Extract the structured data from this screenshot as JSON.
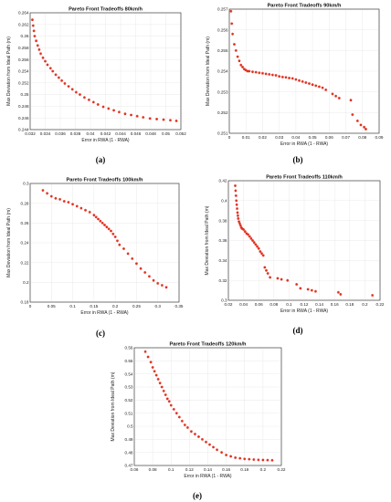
{
  "chart_data": [
    {
      "type": "scatter",
      "caption": "(a)",
      "title": "Pareto Front Tradeoffs 80km/h",
      "xlabel": "Error in RWA (1 - RWA)",
      "ylabel": "Max Deviation from Ideal Path (m)",
      "xlim": [
        0.032,
        0.052
      ],
      "ylim": [
        0.244,
        0.264
      ],
      "xticks": [
        "0.032",
        "0.034",
        "0.036",
        "0.038",
        "0.04",
        "0.042",
        "0.044",
        "0.046",
        "0.048",
        "0.05",
        "0.052"
      ],
      "yticks": [
        "0.244",
        "0.246",
        "0.248",
        "0.25",
        "0.252",
        "0.254",
        "0.256",
        "0.258",
        "0.26",
        "0.262",
        "0.264"
      ],
      "grid": true,
      "x": [
        0.0323,
        0.0324,
        0.0325,
        0.0326,
        0.0328,
        0.033,
        0.0332,
        0.0334,
        0.0337,
        0.034,
        0.0343,
        0.0347,
        0.035,
        0.0354,
        0.0358,
        0.0362,
        0.0366,
        0.0371,
        0.0376,
        0.0381,
        0.0386,
        0.0392,
        0.0398,
        0.0404,
        0.041,
        0.0417,
        0.0424,
        0.0431,
        0.0438,
        0.0446,
        0.0454,
        0.0462,
        0.047,
        0.0479,
        0.0488,
        0.0497,
        0.0506,
        0.0514
      ],
      "y": [
        0.2628,
        0.2618,
        0.2609,
        0.26,
        0.2592,
        0.2584,
        0.2577,
        0.257,
        0.2563,
        0.2557,
        0.2551,
        0.2545,
        0.254,
        0.2534,
        0.2529,
        0.2524,
        0.2519,
        0.2514,
        0.2509,
        0.2504,
        0.25,
        0.2495,
        0.2491,
        0.2487,
        0.2483,
        0.2479,
        0.2476,
        0.2473,
        0.247,
        0.2467,
        0.2465,
        0.2463,
        0.2461,
        0.2459,
        0.2458,
        0.2457,
        0.2456,
        0.2455
      ]
    },
    {
      "type": "scatter",
      "caption": "(b)",
      "title": "Pareto Front Tradeoffs 90km/h",
      "xlabel": "Error in RWA (1 - RWA)",
      "ylabel": "Max Deviation from Ideal Path (m)",
      "xlim": [
        0,
        0.09
      ],
      "ylim": [
        0.251,
        0.257
      ],
      "xticks": [
        "0",
        "0.01",
        "0.02",
        "0.03",
        "0.04",
        "0.05",
        "0.06",
        "0.07",
        "0.08",
        "0.09"
      ],
      "yticks": [
        "0.251",
        "0.252",
        "0.253",
        "0.254",
        "0.255",
        "0.256",
        "0.257"
      ],
      "grid": true,
      "x": [
        0.001,
        0.0015,
        0.002,
        0.003,
        0.004,
        0.005,
        0.006,
        0.007,
        0.008,
        0.009,
        0.01,
        0.011,
        0.012,
        0.014,
        0.016,
        0.018,
        0.02,
        0.022,
        0.024,
        0.026,
        0.028,
        0.03,
        0.032,
        0.034,
        0.036,
        0.038,
        0.04,
        0.042,
        0.044,
        0.046,
        0.048,
        0.05,
        0.052,
        0.054,
        0.056,
        0.058,
        0.062,
        0.064,
        0.066,
        0.073,
        0.074,
        0.077,
        0.079,
        0.081,
        0.082
      ],
      "y": [
        0.2569,
        0.2563,
        0.2558,
        0.2553,
        0.255,
        0.2547,
        0.2545,
        0.2543,
        0.2542,
        0.2541,
        0.25405,
        0.254,
        0.254,
        0.25397,
        0.25395,
        0.25392,
        0.2539,
        0.25387,
        0.25385,
        0.25382,
        0.2538,
        0.25375,
        0.25372,
        0.2537,
        0.25367,
        0.25365,
        0.2536,
        0.25355,
        0.2535,
        0.25345,
        0.2534,
        0.25335,
        0.2533,
        0.25325,
        0.2532,
        0.2531,
        0.2529,
        0.2528,
        0.2527,
        0.2526,
        0.2519,
        0.2516,
        0.2514,
        0.2513,
        0.2512
      ]
    },
    {
      "type": "scatter",
      "caption": "(c)",
      "title": "Pareto Front Tradeoffs 100km/h",
      "xlabel": "Error in RWA (1 - RWA)",
      "ylabel": "Max Deviation from Ideal Path (m)",
      "xlim": [
        0,
        0.35
      ],
      "ylim": [
        0.18,
        0.3
      ],
      "xticks": [
        "0",
        "0.05",
        "0.1",
        "0.15",
        "0.2",
        "0.25",
        "0.3",
        "0.35"
      ],
      "yticks": [
        "0.18",
        "0.2",
        "0.22",
        "0.24",
        "0.26",
        "0.28",
        "0.3"
      ],
      "grid": true,
      "x": [
        0.03,
        0.04,
        0.05,
        0.06,
        0.07,
        0.08,
        0.09,
        0.1,
        0.11,
        0.12,
        0.13,
        0.14,
        0.15,
        0.155,
        0.16,
        0.165,
        0.17,
        0.175,
        0.18,
        0.185,
        0.19,
        0.195,
        0.2,
        0.205,
        0.21,
        0.22,
        0.23,
        0.24,
        0.25,
        0.26,
        0.27,
        0.28,
        0.29,
        0.3,
        0.31,
        0.32
      ],
      "y": [
        0.293,
        0.29,
        0.287,
        0.285,
        0.284,
        0.282,
        0.281,
        0.279,
        0.277,
        0.275,
        0.273,
        0.271,
        0.268,
        0.266,
        0.264,
        0.262,
        0.26,
        0.258,
        0.256,
        0.254,
        0.252,
        0.249,
        0.246,
        0.242,
        0.238,
        0.234,
        0.229,
        0.224,
        0.219,
        0.214,
        0.21,
        0.206,
        0.202,
        0.199,
        0.197,
        0.195
      ]
    },
    {
      "type": "scatter",
      "caption": "(d)",
      "title": "Pareto Front Tradeoffs 110km/h",
      "xlabel": "Error in RWA (1 - RWA)",
      "ylabel": "Max Deviation from Ideal Path (m)",
      "xlim": [
        0.02,
        0.22
      ],
      "ylim": [
        0.3,
        0.42
      ],
      "xticks": [
        "0.02",
        "0.04",
        "0.06",
        "0.08",
        "0.1",
        "0.12",
        "0.14",
        "0.16",
        "0.18",
        "0.2",
        "0.22"
      ],
      "yticks": [
        "0.3",
        "0.32",
        "0.34",
        "0.36",
        "0.38",
        "0.4",
        "0.42"
      ],
      "grid": true,
      "x": [
        0.029,
        0.0295,
        0.03,
        0.0305,
        0.031,
        0.0315,
        0.032,
        0.0325,
        0.033,
        0.034,
        0.035,
        0.036,
        0.037,
        0.038,
        0.04,
        0.042,
        0.044,
        0.046,
        0.048,
        0.05,
        0.052,
        0.054,
        0.056,
        0.058,
        0.06,
        0.062,
        0.064,
        0.066,
        0.068,
        0.07,
        0.072,
        0.075,
        0.085,
        0.09,
        0.098,
        0.11,
        0.115,
        0.125,
        0.13,
        0.135,
        0.165,
        0.168,
        0.21
      ],
      "y": [
        0.415,
        0.41,
        0.405,
        0.4,
        0.396,
        0.392,
        0.388,
        0.385,
        0.382,
        0.379,
        0.377,
        0.375,
        0.373,
        0.372,
        0.371,
        0.369,
        0.367,
        0.366,
        0.364,
        0.362,
        0.36,
        0.358,
        0.356,
        0.354,
        0.352,
        0.349,
        0.347,
        0.345,
        0.333,
        0.33,
        0.327,
        0.323,
        0.322,
        0.321,
        0.32,
        0.316,
        0.312,
        0.311,
        0.31,
        0.309,
        0.308,
        0.306,
        0.305
      ]
    },
    {
      "type": "scatter",
      "caption": "(e)",
      "title": "Pareto Front Tradeoffs 120km/h",
      "xlabel": "Error in RWA (1 - RWA)",
      "ylabel": "Max Deviation from Ideal Path (m)",
      "xlim": [
        0.06,
        0.22
      ],
      "ylim": [
        0.47,
        0.56
      ],
      "xticks": [
        "0.06",
        "0.08",
        "0.1",
        "0.12",
        "0.14",
        "0.16",
        "0.18",
        "0.2",
        "0.22"
      ],
      "yticks": [
        "0.47",
        "0.48",
        "0.49",
        "0.5",
        "0.51",
        "0.52",
        "0.53",
        "0.54",
        "0.55",
        "0.56"
      ],
      "grid": true,
      "x": [
        0.072,
        0.075,
        0.078,
        0.08,
        0.082,
        0.084,
        0.086,
        0.088,
        0.09,
        0.092,
        0.094,
        0.096,
        0.098,
        0.1,
        0.103,
        0.106,
        0.109,
        0.112,
        0.115,
        0.118,
        0.122,
        0.126,
        0.13,
        0.134,
        0.138,
        0.142,
        0.146,
        0.15,
        0.155,
        0.16,
        0.165,
        0.17,
        0.175,
        0.18,
        0.185,
        0.19,
        0.195,
        0.2,
        0.205,
        0.21
      ],
      "y": [
        0.557,
        0.553,
        0.549,
        0.545,
        0.542,
        0.539,
        0.536,
        0.533,
        0.53,
        0.527,
        0.524,
        0.521,
        0.519,
        0.516,
        0.513,
        0.51,
        0.507,
        0.504,
        0.501,
        0.499,
        0.496,
        0.494,
        0.492,
        0.49,
        0.488,
        0.486,
        0.484,
        0.482,
        0.48,
        0.478,
        0.477,
        0.476,
        0.4755,
        0.475,
        0.4748,
        0.4745,
        0.4743,
        0.4742,
        0.4741,
        0.474
      ]
    }
  ]
}
